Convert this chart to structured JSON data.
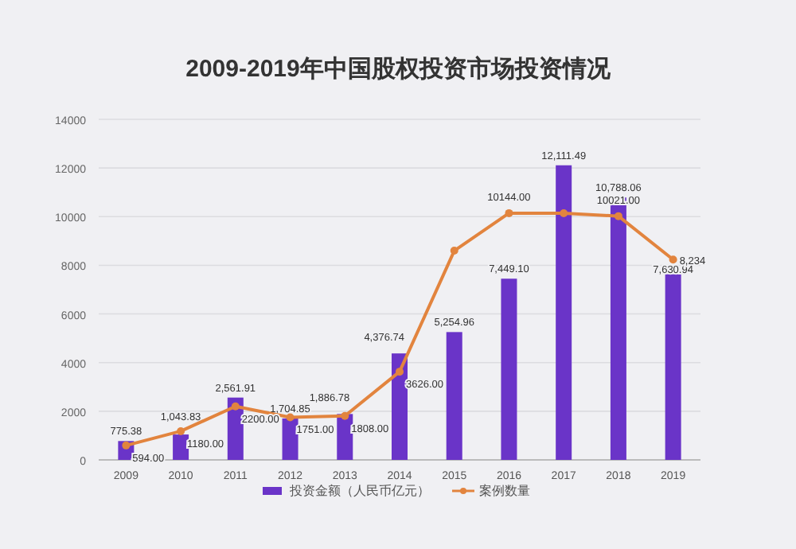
{
  "chart_data": {
    "type": "bar",
    "title": "2009-2019年中国股权投资市场投资情况",
    "categories": [
      "2009",
      "2010",
      "2011",
      "2012",
      "2013",
      "2014",
      "2015",
      "2016",
      "2017",
      "2018",
      "2019"
    ],
    "series": [
      {
        "name": "投资金额（人民币亿元）",
        "type": "bar",
        "color": "#6a34c8",
        "values": [
          775.38,
          1043.83,
          2561.91,
          1704.85,
          1886.78,
          4376.74,
          5254.96,
          7449.1,
          12111.49,
          10788.06,
          7630.94
        ],
        "value_labels": [
          "775.38",
          "1,043.83",
          "2,561.91",
          "1,704.85",
          "1,886.78",
          "4,376.74",
          "5,254.96",
          "7,449.10",
          "12,111.49",
          "10,788.06",
          "7,630.94"
        ]
      },
      {
        "name": "案例数量",
        "type": "line",
        "color": "#e2843e",
        "marker": "circle",
        "values": [
          594,
          1180,
          2200,
          1751,
          1808,
          3626,
          8600,
          10144,
          10140,
          10021,
          8234
        ],
        "value_labels": [
          "594.00",
          "1180.00",
          "2200.00",
          "1751.00",
          "1808.00",
          "3626.00",
          null,
          "10144.00",
          null,
          "10021.00",
          "8,234"
        ]
      }
    ],
    "ylim": [
      0,
      14000
    ],
    "yticks": [
      0,
      2000,
      4000,
      6000,
      8000,
      10000,
      12000,
      14000
    ],
    "grid": "y",
    "legend": "bottom"
  }
}
